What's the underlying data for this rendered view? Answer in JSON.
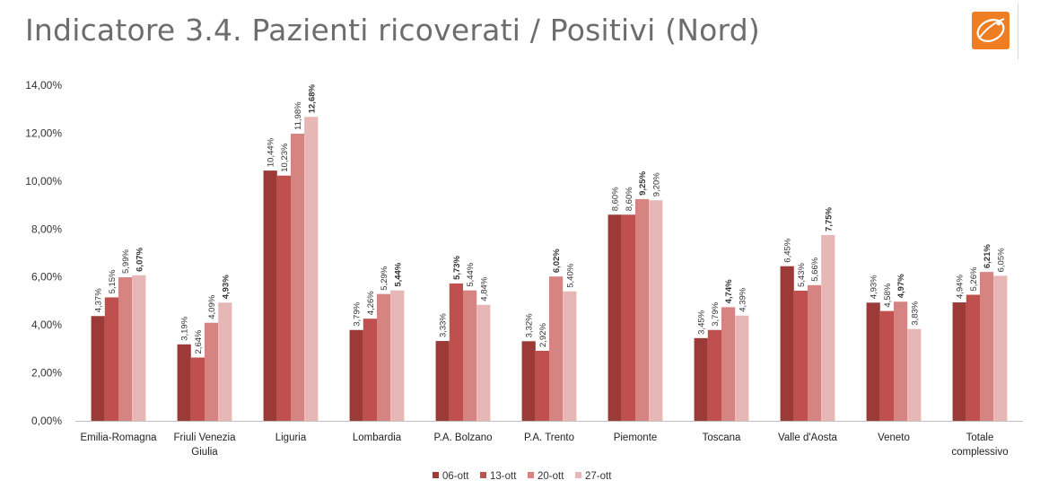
{
  "slide": {
    "title": "Indicatore 3.4. Pazienti ricoverati / Positivi (Nord)",
    "logo_icon": "organization-logo"
  },
  "colors": {
    "axis": "#bfbfbf",
    "series": [
      "#9b3a37",
      "#c0504d",
      "#d68481",
      "#e6b7b5"
    ],
    "logo_bg": "#ef7d22"
  },
  "chart_data": {
    "type": "bar",
    "title": "",
    "xlabel": "",
    "ylabel": "",
    "ylim": [
      0,
      14
    ],
    "yticks": [
      "0,00%",
      "2,00%",
      "4,00%",
      "6,00%",
      "8,00%",
      "10,00%",
      "12,00%",
      "14,00%"
    ],
    "grid": false,
    "legend_position": "bottom",
    "categories": [
      [
        "Emilia-Romagna"
      ],
      [
        "Friuli Venezia",
        "Giulia"
      ],
      [
        "Liguria"
      ],
      [
        "Lombardia"
      ],
      [
        "P.A. Bolzano"
      ],
      [
        "P.A. Trento"
      ],
      [
        "Piemonte"
      ],
      [
        "Toscana"
      ],
      [
        "Valle d'Aosta"
      ],
      [
        "Veneto"
      ],
      [
        "Totale",
        "complessivo"
      ]
    ],
    "series": [
      {
        "name": "06-ott",
        "values": [
          4.37,
          3.19,
          10.44,
          3.79,
          3.33,
          3.32,
          8.6,
          3.45,
          6.45,
          4.93,
          4.94
        ],
        "labels": [
          "4,37%",
          "3,19%",
          "10,44%",
          "3,79%",
          "3,33%",
          "3,32%",
          "8,60%",
          "3,45%",
          "6,45%",
          "4,93%",
          "4,94%"
        ]
      },
      {
        "name": "13-ott",
        "values": [
          5.15,
          2.64,
          10.23,
          4.26,
          5.73,
          2.92,
          8.6,
          3.79,
          5.43,
          4.58,
          5.26
        ],
        "labels": [
          "5,15%",
          "2,64%",
          "10,23%",
          "4,26%",
          "5,73%",
          "2,92%",
          "8,60%",
          "3,79%",
          "5,43%",
          "4,58%",
          "5,26%"
        ]
      },
      {
        "name": "20-ott",
        "values": [
          5.99,
          4.09,
          11.98,
          5.29,
          5.44,
          6.02,
          9.25,
          4.74,
          5.66,
          4.97,
          6.21
        ],
        "labels": [
          "5,99%",
          "4,09%",
          "11,98%",
          "5,29%",
          "5,44%",
          "6,02%",
          "9,25%",
          "4,74%",
          "5,66%",
          "4,97%",
          "6,21%"
        ]
      },
      {
        "name": "27-ott",
        "values": [
          6.07,
          4.93,
          12.68,
          5.44,
          4.84,
          5.4,
          9.2,
          4.39,
          7.75,
          3.83,
          6.05
        ],
        "labels": [
          "6,07%",
          "4,93%",
          "12,68%",
          "5,44%",
          "4,84%",
          "5,40%",
          "9,20%",
          "4,39%",
          "7,75%",
          "3,83%",
          "6,05%"
        ]
      }
    ],
    "bold_labels": [
      [
        0,
        3
      ],
      [
        1,
        3
      ],
      [
        2,
        3
      ],
      [
        3,
        3
      ],
      [
        4,
        1
      ],
      [
        5,
        2
      ],
      [
        6,
        2
      ],
      [
        7,
        2
      ],
      [
        8,
        3
      ],
      [
        9,
        2
      ],
      [
        10,
        2
      ]
    ]
  }
}
